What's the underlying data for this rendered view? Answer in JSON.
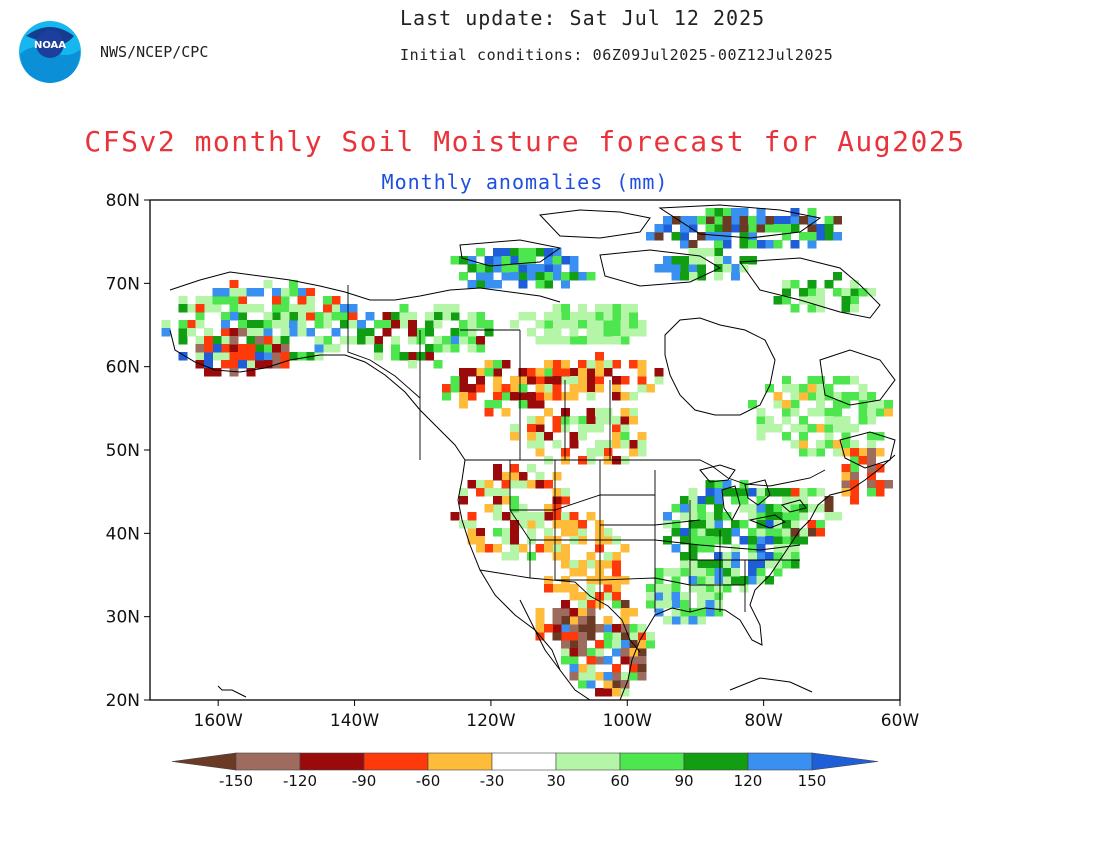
{
  "header": {
    "agency": "NWS/NCEP/CPC",
    "last_update": "Last update: Sat Jul 12 2025",
    "initial_conditions": "Initial conditions: 06Z09Jul2025-00Z12Jul2025",
    "logo_text": "NOAA"
  },
  "title": "CFSv2 monthly Soil Moisture forecast for Aug2025",
  "subtitle": "Monthly anomalies (mm)",
  "map": {
    "lon_range": [
      -170,
      -60
    ],
    "lat_range": [
      20,
      80
    ],
    "lat_ticks": [
      "80N",
      "70N",
      "60N",
      "50N",
      "40N",
      "30N",
      "20N"
    ],
    "lon_ticks": [
      "160W",
      "140W",
      "120W",
      "100W",
      "80W",
      "60W"
    ]
  },
  "colorbar": {
    "colors": [
      "#6b3a24",
      "#9e6c5e",
      "#9b0a0a",
      "#ff3a0a",
      "#ffbb3a",
      "#ffffff",
      "#b4f5a8",
      "#4ee64e",
      "#129e12",
      "#3a90f0",
      "#1e5fd8"
    ],
    "labels": [
      "-150",
      "-120",
      "-90",
      "-60",
      "-30",
      "30",
      "60",
      "90",
      "120",
      "150"
    ]
  },
  "legend_colors": {
    "land_outline": "#000000",
    "title_color": "#e8333a",
    "subtitle_color": "#1f4fe0"
  }
}
